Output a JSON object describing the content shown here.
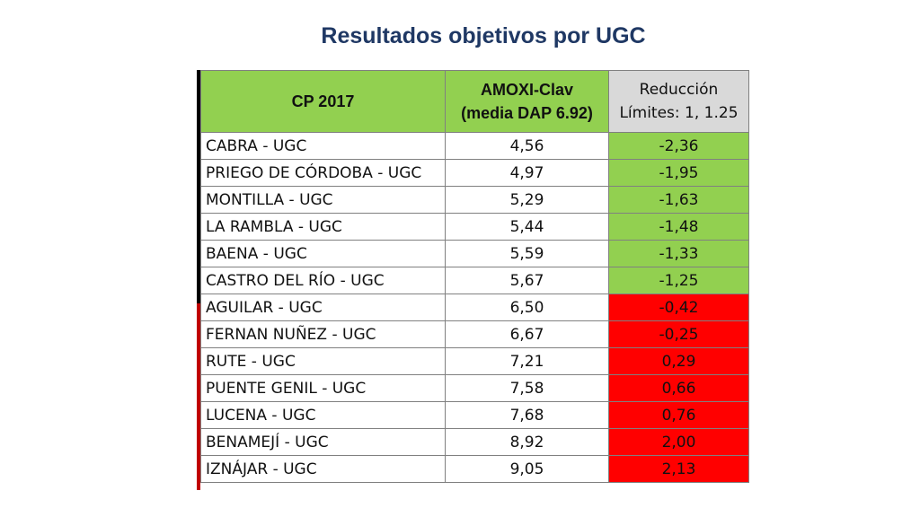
{
  "title": "Resultados objetivos por UGC",
  "header": {
    "col1": "CP 2017",
    "col2_line1": "AMOXI-Clav",
    "col2_line2": "(media DAP 6.92)",
    "col3_line1": "Reducción",
    "col3_line2": "Límites: 1, 1.25"
  },
  "colors": {
    "green": "#92d050",
    "red": "#ff0000",
    "title": "#1f3864"
  },
  "rows": [
    {
      "name": "CABRA - UGC",
      "amoxi": "4,56",
      "reduccion": "-2,36",
      "status": "green"
    },
    {
      "name": "PRIEGO DE CÓRDOBA - UGC",
      "amoxi": "4,97",
      "reduccion": "-1,95",
      "status": "green"
    },
    {
      "name": "MONTILLA - UGC",
      "amoxi": "5,29",
      "reduccion": "-1,63",
      "status": "green"
    },
    {
      "name": "LA RAMBLA - UGC",
      "amoxi": "5,44",
      "reduccion": "-1,48",
      "status": "green"
    },
    {
      "name": "BAENA - UGC",
      "amoxi": "5,59",
      "reduccion": "-1,33",
      "status": "green"
    },
    {
      "name": "CASTRO DEL RÍO - UGC",
      "amoxi": "5,67",
      "reduccion": "-1,25",
      "status": "green"
    },
    {
      "name": "AGUILAR - UGC",
      "amoxi": "6,50",
      "reduccion": "-0,42",
      "status": "red"
    },
    {
      "name": "FERNAN NUÑEZ - UGC",
      "amoxi": "6,67",
      "reduccion": "-0,25",
      "status": "red"
    },
    {
      "name": "RUTE - UGC",
      "amoxi": "7,21",
      "reduccion": "0,29",
      "status": "red"
    },
    {
      "name": "PUENTE GENIL - UGC",
      "amoxi": "7,58",
      "reduccion": "0,66",
      "status": "red"
    },
    {
      "name": "LUCENA - UGC",
      "amoxi": "7,68",
      "reduccion": "0,76",
      "status": "red"
    },
    {
      "name": "BENAMEJÍ - UGC",
      "amoxi": "8,92",
      "reduccion": "2,00",
      "status": "red"
    },
    {
      "name": "IZNÁJAR - UGC",
      "amoxi": "9,05",
      "reduccion": "2,13",
      "status": "red"
    }
  ]
}
